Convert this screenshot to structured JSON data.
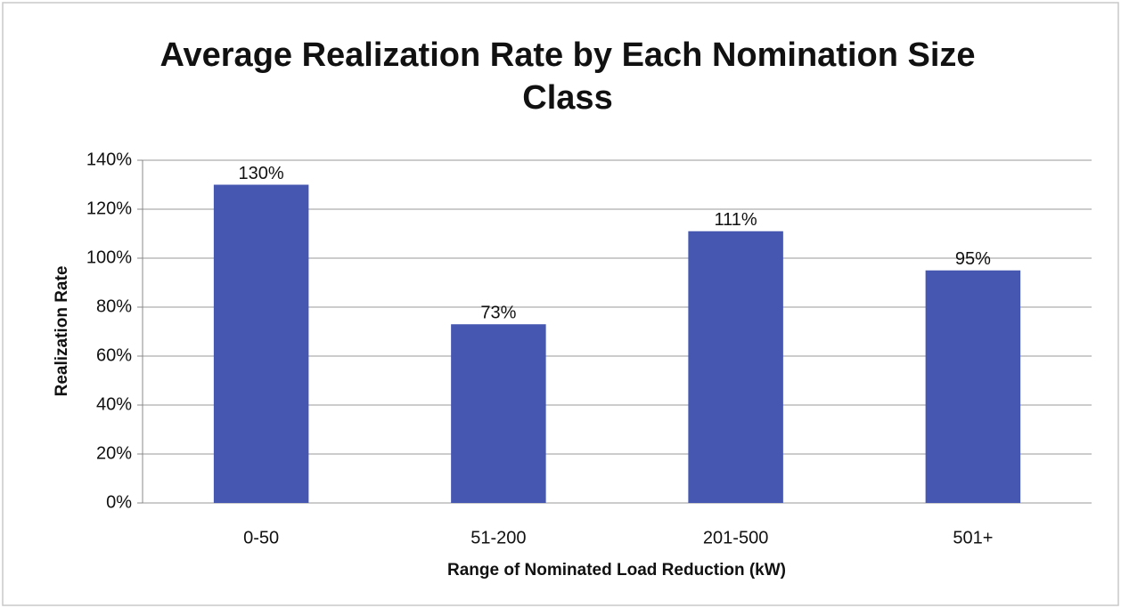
{
  "chart_data": {
    "type": "bar",
    "title": "Average Realization Rate by Each Nomination Size Class",
    "x_label": "Range of Nominated Load Reduction (kW)",
    "y_label": "Realization Rate",
    "categories": [
      "0-50",
      "51-200",
      "201-500",
      "501+"
    ],
    "values": [
      130,
      73,
      111,
      95
    ],
    "value_labels": [
      "130%",
      "73%",
      "111%",
      "95%"
    ],
    "color": "#4557b0",
    "ylim": [
      0,
      140
    ],
    "yticks": [
      {
        "value": 0,
        "label": "0%"
      },
      {
        "value": 20,
        "label": "20%"
      },
      {
        "value": 40,
        "label": "40%"
      },
      {
        "value": 60,
        "label": "60%"
      },
      {
        "value": 80,
        "label": "80%"
      },
      {
        "value": 100,
        "label": "100%"
      },
      {
        "value": 120,
        "label": "120%"
      },
      {
        "value": 140,
        "label": "140%"
      }
    ],
    "grid": true
  }
}
